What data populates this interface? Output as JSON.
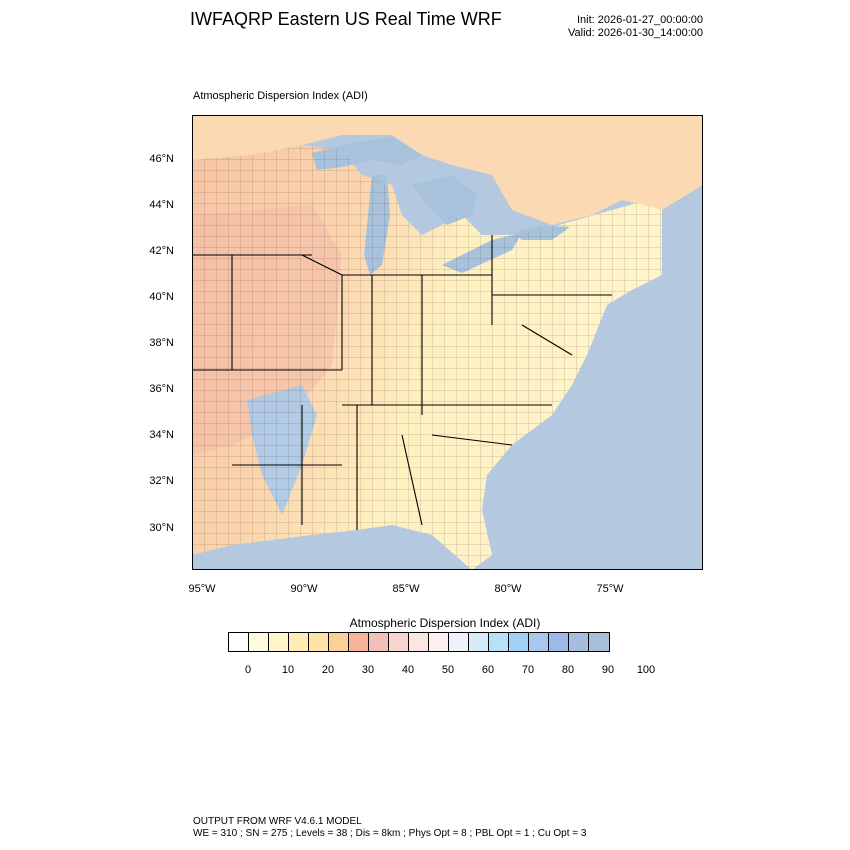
{
  "header": {
    "title": "IWFAQRP Eastern US Real Time WRF",
    "init": "Init: 2026-01-27_00:00:00",
    "valid": "Valid: 2026-01-30_14:00:00"
  },
  "map": {
    "subtitle": "Atmospheric Dispersion Index   (ADI)",
    "lat_labels": [
      "46°N",
      "44°N",
      "42°N",
      "40°N",
      "38°N",
      "36°N",
      "34°N",
      "32°N",
      "30°N"
    ],
    "lon_labels": [
      "95°W",
      "90°W",
      "85°W",
      "80°W",
      "75°W"
    ],
    "colors": {
      "land_low": "#fff2c4",
      "land_mid": "#f9c9a8",
      "land_high": "#e9b8b0",
      "water": "#b4c9df",
      "water_light": "#cfe0f0",
      "border": "#000000"
    }
  },
  "colorbar": {
    "title": "Atmospheric Dispersion Index  (ADI)",
    "colors": [
      "#ffffff",
      "#fffbe0",
      "#fff4cc",
      "#ffecb3",
      "#ffe2a6",
      "#fdd09a",
      "#f6b49a",
      "#f3c0b8",
      "#f8d6cf",
      "#fbe6e1",
      "#fdf0ee",
      "#eef3fb",
      "#d6ecf8",
      "#b5e2f8",
      "#9fd2f5",
      "#a9c7ee",
      "#9db9e8",
      "#a7bde0",
      "#a9bfd8"
    ],
    "ticks": [
      "0",
      "10",
      "20",
      "30",
      "40",
      "50",
      "60",
      "70",
      "80",
      "90",
      "100"
    ]
  },
  "footer": {
    "line1": "OUTPUT FROM WRF V4.6.1 MODEL",
    "line2": "WE = 310 ; SN = 275 ; Levels = 38 ; Dis = 8km ; Phys Opt = 8 ; PBL Opt = 1 ; Cu Opt = 3"
  }
}
